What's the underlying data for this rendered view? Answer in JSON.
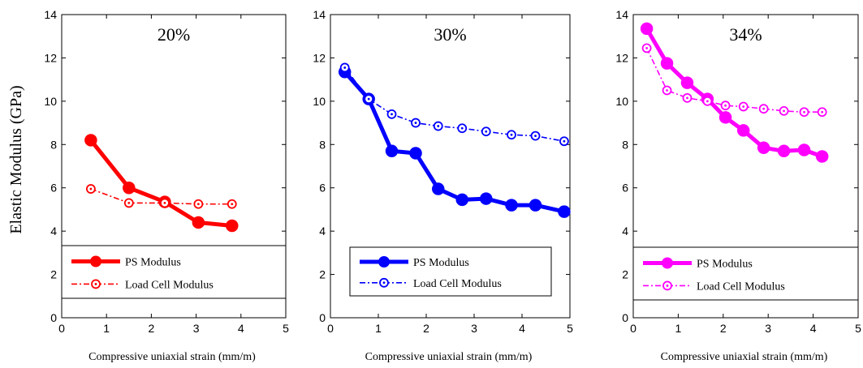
{
  "chart_data": [
    {
      "type": "line",
      "title": "20%",
      "xlabel": "Compressive uniaxial strain  (mm/m)",
      "ylabel": "Elastic Modulus (GPa)",
      "xlim": [
        0,
        5
      ],
      "ylim": [
        0,
        14
      ],
      "xticks": [
        0,
        1,
        2,
        3,
        4,
        5
      ],
      "yticks": [
        0,
        2,
        4,
        6,
        8,
        10,
        12,
        14
      ],
      "grid": false,
      "legend_position": "bottom",
      "color": "#ff0000",
      "series": [
        {
          "name": "PS Modulus",
          "style": "solid",
          "x": [
            0.65,
            1.5,
            2.3,
            3.05,
            3.8
          ],
          "y": [
            8.2,
            6.0,
            5.35,
            4.4,
            4.25
          ]
        },
        {
          "name": "Load Cell Modulus",
          "style": "dashdot",
          "x": [
            0.65,
            1.5,
            2.3,
            3.05,
            3.8
          ],
          "y": [
            5.95,
            5.3,
            5.3,
            5.25,
            5.25
          ]
        }
      ]
    },
    {
      "type": "line",
      "title": "30%",
      "xlabel": "Compressive uniaxial strain  (mm/m)",
      "ylabel": "",
      "xlim": [
        0,
        5
      ],
      "ylim": [
        0,
        14
      ],
      "xticks": [
        0,
        1,
        2,
        3,
        4,
        5
      ],
      "yticks": [
        0,
        2,
        4,
        6,
        8,
        10,
        12,
        14
      ],
      "grid": false,
      "legend_position": "bottom",
      "color": "#0000ff",
      "series": [
        {
          "name": "PS Modulus",
          "style": "solid",
          "x": [
            0.3,
            0.8,
            1.28,
            1.78,
            2.25,
            2.75,
            3.25,
            3.78,
            4.28,
            4.88
          ],
          "y": [
            11.35,
            10.1,
            7.7,
            7.6,
            5.95,
            5.45,
            5.5,
            5.2,
            5.2,
            4.9
          ]
        },
        {
          "name": "Load Cell Modulus",
          "style": "dashdot",
          "x": [
            0.3,
            0.8,
            1.28,
            1.78,
            2.25,
            2.75,
            3.25,
            3.78,
            4.28,
            4.88
          ],
          "y": [
            11.55,
            10.1,
            9.4,
            9.0,
            8.85,
            8.75,
            8.6,
            8.45,
            8.4,
            8.15
          ]
        }
      ]
    },
    {
      "type": "line",
      "title": "34%",
      "xlabel": "Compressive uniaxial strain  (mm/m)",
      "ylabel": "",
      "xlim": [
        0,
        5
      ],
      "ylim": [
        0,
        14
      ],
      "xticks": [
        0,
        1,
        2,
        3,
        4,
        5
      ],
      "yticks": [
        0,
        2,
        4,
        6,
        8,
        10,
        12,
        14
      ],
      "grid": false,
      "legend_position": "bottom",
      "color": "#ff00ff",
      "series": [
        {
          "name": "PS Modulus",
          "style": "solid",
          "x": [
            0.3,
            0.75,
            1.2,
            1.65,
            2.05,
            2.45,
            2.9,
            3.35,
            3.8,
            4.2
          ],
          "y": [
            13.35,
            11.75,
            10.85,
            10.1,
            9.25,
            8.65,
            7.85,
            7.7,
            7.75,
            7.45
          ]
        },
        {
          "name": "Load Cell Modulus",
          "style": "dashdot",
          "x": [
            0.3,
            0.75,
            1.2,
            1.65,
            2.05,
            2.45,
            2.9,
            3.35,
            3.8,
            4.2
          ],
          "y": [
            12.45,
            10.5,
            10.15,
            10.0,
            9.8,
            9.75,
            9.65,
            9.55,
            9.5,
            9.5
          ]
        }
      ]
    }
  ]
}
